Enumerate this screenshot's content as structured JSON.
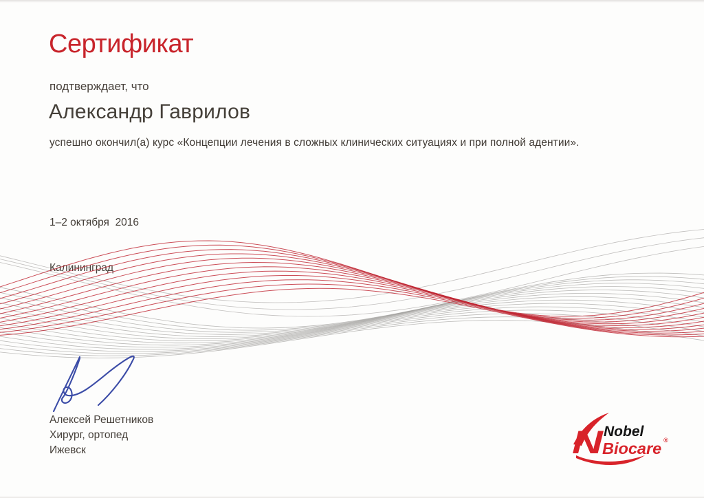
{
  "certificate": {
    "title": "Сертификат",
    "confirm_line": "подтверждает, что",
    "recipient_name": "Александр Гаврилов",
    "course_line": "успешно окончил(а) курс «Концепции лечения в сложных клинических ситуациях и при полной адентии».",
    "date": "1–2 октября  2016",
    "location": "Калининград"
  },
  "signature": {
    "signer_name": "Алексей Решетников",
    "signer_title": "Хирург, ортопед",
    "signer_city": "Ижевск"
  },
  "logo": {
    "brand_top": "Nobel",
    "brand_bottom": "Biocare",
    "registered_mark": "®"
  },
  "colors": {
    "accent_red": "#c8242b",
    "logo_red": "#d8232a",
    "logo_black": "#151515",
    "text_dark": "#46403a",
    "signature_blue": "#2b3da0",
    "wave_red": "#c02733",
    "wave_gray": "#8f8d8b"
  }
}
